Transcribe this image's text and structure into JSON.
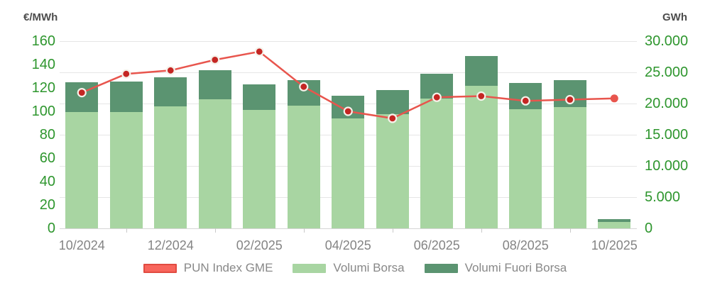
{
  "chart_data": {
    "type": "combo-bar-line",
    "title": "",
    "categories": [
      "10/2024",
      "11/2024",
      "12/2024",
      "01/2025",
      "02/2025",
      "03/2025",
      "04/2025",
      "05/2025",
      "06/2025",
      "07/2025",
      "08/2025",
      "09/2025",
      "10/2025"
    ],
    "x_axis": {
      "visible_labels": [
        "10/2024",
        "12/2024",
        "02/2025",
        "04/2025",
        "06/2025",
        "08/2025",
        "10/2025"
      ],
      "label_every": 2
    },
    "left_axis": {
      "title": "€/MWh",
      "min": 0,
      "max": 160,
      "tick_step": 20,
      "tick_labels": [
        "160",
        "140",
        "120",
        "100",
        "80",
        "60",
        "40",
        "20",
        "0"
      ]
    },
    "right_axis": {
      "title": "GWh",
      "min": 0,
      "max": 30000,
      "tick_step": 5000,
      "tick_labels": [
        "30.000",
        "25.000",
        "20.000",
        "15.000",
        "10.000",
        "5.000",
        "0"
      ]
    },
    "series": [
      {
        "name": "PUN Index GME",
        "type": "line",
        "axis": "left",
        "color": "#e8554d",
        "marker_fill": "#c42623",
        "marker_ring": "#f5f2ea",
        "values": [
          116,
          132,
          135,
          144,
          151,
          121,
          100,
          94,
          112,
          113,
          109,
          110,
          111
        ]
      },
      {
        "name": "Volumi Borsa",
        "type": "column",
        "axis": "right",
        "color": "#a8d5a2",
        "values": [
          18600,
          18600,
          19600,
          20700,
          19000,
          19700,
          17600,
          18300,
          20800,
          22800,
          19100,
          19400,
          1000
        ]
      },
      {
        "name": "Volumi Fuori Borsa",
        "type": "column",
        "axis": "right",
        "color": "#5b9471",
        "values": [
          4800,
          4900,
          4600,
          4600,
          4100,
          4000,
          3700,
          3900,
          4000,
          4800,
          4200,
          4400,
          500
        ]
      }
    ],
    "legend": {
      "position": "bottom",
      "pun_swatch_fill": "#f8655c",
      "pun_swatch_border": "#e14b41"
    },
    "grid": {
      "on": true,
      "color": "#e6e6e6"
    }
  }
}
